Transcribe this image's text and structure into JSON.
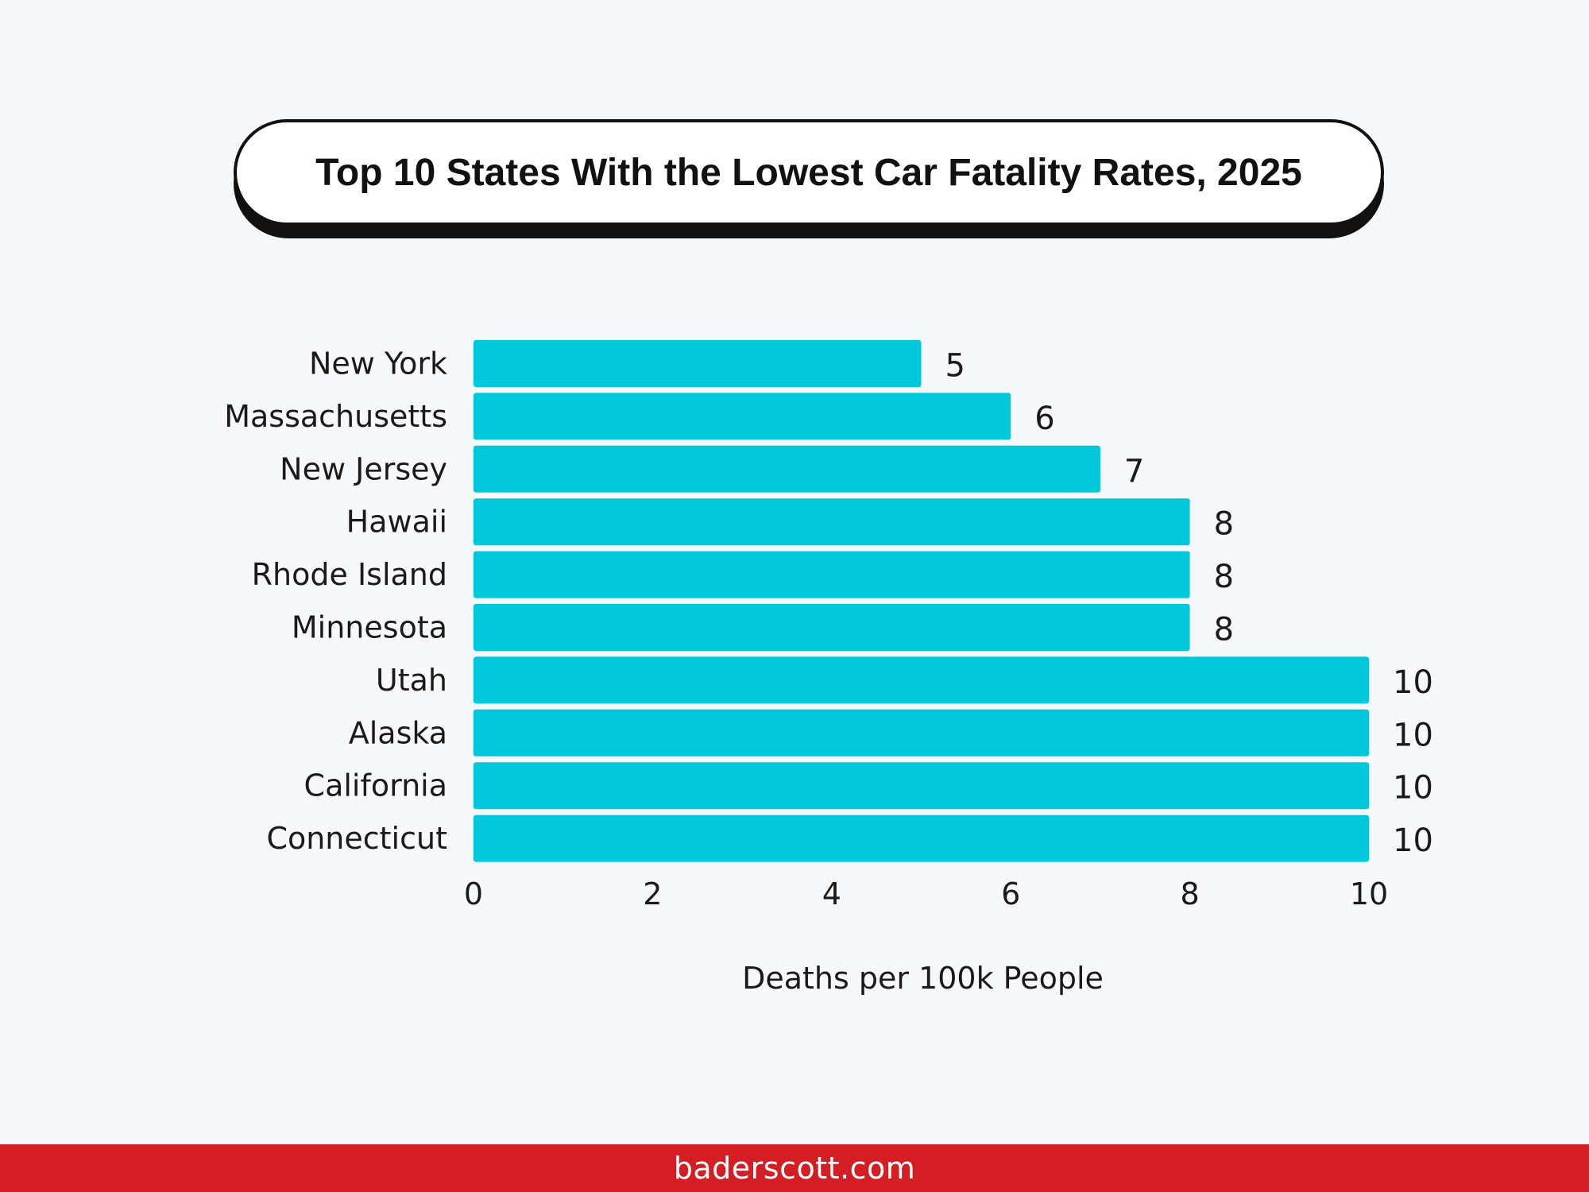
{
  "chart_data": {
    "type": "bar",
    "orientation": "horizontal",
    "title": "Top 10 States With the Lowest Car Fatality Rates, 2025",
    "categories": [
      "New York",
      "Massachusetts",
      "New Jersey",
      "Hawaii",
      "Rhode Island",
      "Minnesota",
      "Utah",
      "Alaska",
      "California",
      "Connecticut"
    ],
    "values": [
      5,
      6,
      7,
      8,
      8,
      8,
      10,
      10,
      10,
      10
    ],
    "value_labels": [
      "5",
      "6",
      "7",
      "8",
      "8",
      "8",
      "10",
      "10",
      "10",
      "10"
    ],
    "xlabel": "Deaths per 100k People",
    "ylabel": "",
    "xlim": [
      0,
      10
    ],
    "xticks": [
      0,
      2,
      4,
      6,
      8,
      10
    ],
    "xtick_labels": [
      "0",
      "2",
      "4",
      "6",
      "8",
      "10"
    ],
    "grid": false,
    "bar_color": "#00c8db"
  },
  "footer": {
    "text": "baderscott.com"
  },
  "colors": {
    "background": "#f5f9fb",
    "footer": "#d41e24",
    "text": "#1a1a1a"
  }
}
